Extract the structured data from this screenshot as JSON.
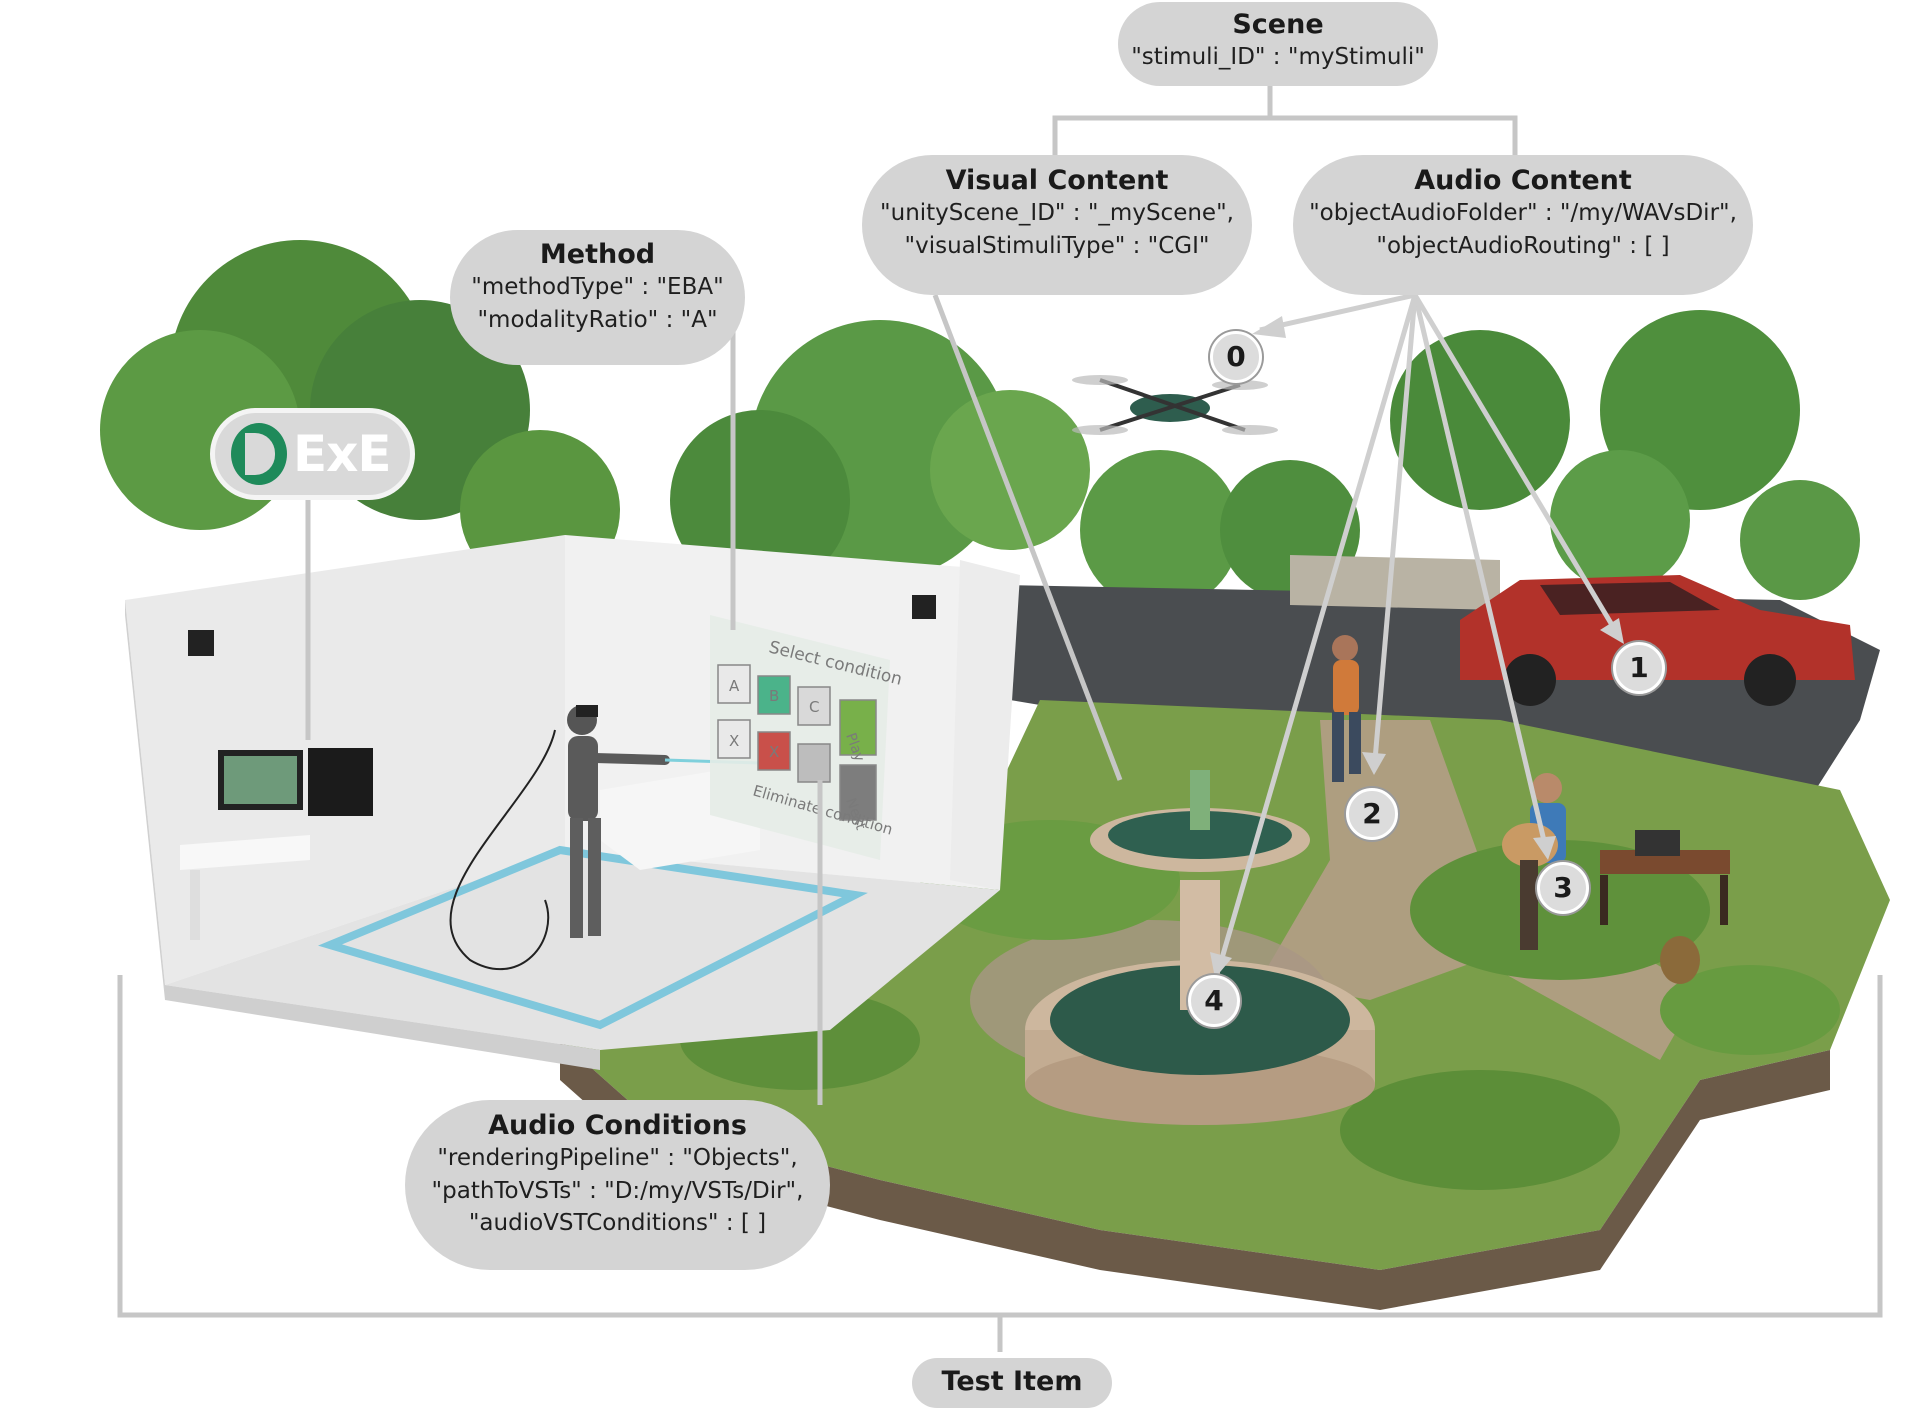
{
  "scene": {
    "title": "Scene",
    "lines": [
      "\"stimuli_ID\" : \"myStimuli\""
    ]
  },
  "visual_content": {
    "title": "Visual Content",
    "lines": [
      "\"unityScene_ID\" : \"_myScene\",",
      "\"visualStimuliType\" : \"CGI\""
    ]
  },
  "audio_content": {
    "title": "Audio Content",
    "lines": [
      "\"objectAudioFolder\" : \"/my/WAVsDir\",",
      "\"objectAudioRouting\" : [ ]"
    ]
  },
  "method": {
    "title": "Method",
    "lines": [
      "\"methodType\" : \"EBA\"",
      "\"modalityRatio\" : \"A\""
    ]
  },
  "audio_conditions": {
    "title": "Audio Conditions",
    "lines": [
      "\"renderingPipeline\" : \"Objects\",",
      "\"pathToVSTs\" : \"D:/my/VSTs/Dir\",",
      "\"audioVSTConditions\" : [ ]"
    ]
  },
  "test_item": {
    "title": "Test Item"
  },
  "logo": {
    "text": "ExE"
  },
  "markers": [
    "0",
    "1",
    "2",
    "3",
    "4"
  ],
  "vr_panel": {
    "heading": "Select condition",
    "buttons": [
      "A",
      "B",
      "C",
      "X",
      "X"
    ],
    "play": "Play",
    "next": "Next",
    "footer": "Eliminate condition"
  },
  "colors": {
    "bubble": "#d4d4d4",
    "connector": "#c6c6c6",
    "brand_green": "#1e8a5a"
  }
}
